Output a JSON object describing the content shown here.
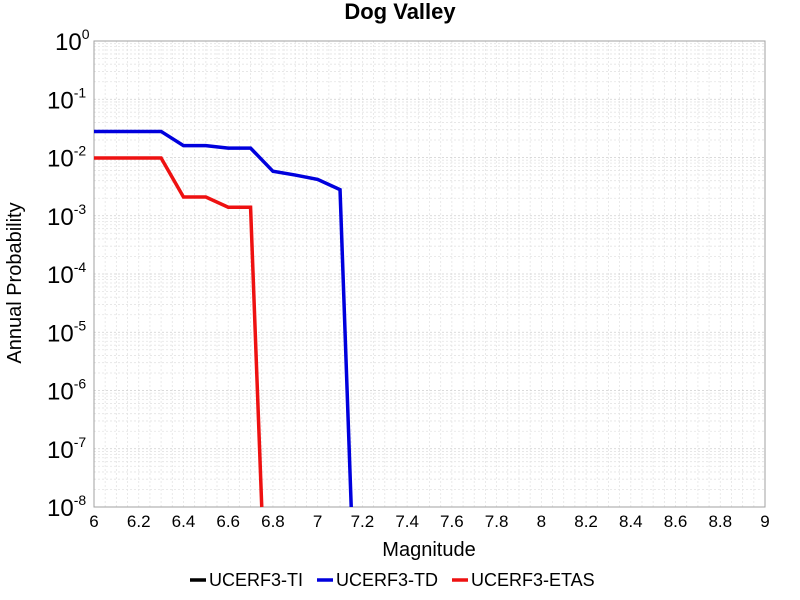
{
  "chart_data": {
    "type": "line",
    "title": "Dog Valley",
    "xlabel": "Magnitude",
    "ylabel": "Annual Probability",
    "xlim": [
      6,
      9
    ],
    "ylim": [
      1e-08,
      1
    ],
    "yscale": "log",
    "grid": true,
    "legend_position": "bottom",
    "x_ticks": [
      "6",
      "6.2",
      "6.4",
      "6.6",
      "6.8",
      "7",
      "7.2",
      "7.4",
      "7.6",
      "7.8",
      "8",
      "8.2",
      "8.4",
      "8.6",
      "8.8",
      "9"
    ],
    "y_ticks": [
      {
        "base": "10",
        "exp": "0",
        "value": 1
      },
      {
        "base": "10",
        "exp": "-1",
        "value": 0.1
      },
      {
        "base": "10",
        "exp": "-2",
        "value": 0.01
      },
      {
        "base": "10",
        "exp": "-3",
        "value": 0.001
      },
      {
        "base": "10",
        "exp": "-4",
        "value": 0.0001
      },
      {
        "base": "10",
        "exp": "-5",
        "value": 1e-05
      },
      {
        "base": "10",
        "exp": "-6",
        "value": 1e-06
      },
      {
        "base": "10",
        "exp": "-7",
        "value": 1e-07
      },
      {
        "base": "10",
        "exp": "-8",
        "value": 1e-08
      }
    ],
    "series": [
      {
        "name": "UCERF3-TI",
        "color": "#000000",
        "x": [],
        "y": []
      },
      {
        "name": "UCERF3-TD",
        "color": "#0000dd",
        "x": [
          6.0,
          6.1,
          6.2,
          6.3,
          6.4,
          6.5,
          6.6,
          6.7,
          6.8,
          6.9,
          7.0,
          7.1,
          7.15
        ],
        "y": [
          0.028,
          0.028,
          0.028,
          0.028,
          0.016,
          0.016,
          0.0145,
          0.0145,
          0.0058,
          0.005,
          0.0042,
          0.0028,
          1e-08
        ]
      },
      {
        "name": "UCERF3-ETAS",
        "color": "#ee1111",
        "x": [
          6.0,
          6.1,
          6.2,
          6.3,
          6.4,
          6.5,
          6.6,
          6.7,
          6.75
        ],
        "y": [
          0.0098,
          0.0098,
          0.0098,
          0.0098,
          0.0021,
          0.0021,
          0.0014,
          0.0014,
          1e-08
        ]
      }
    ]
  }
}
